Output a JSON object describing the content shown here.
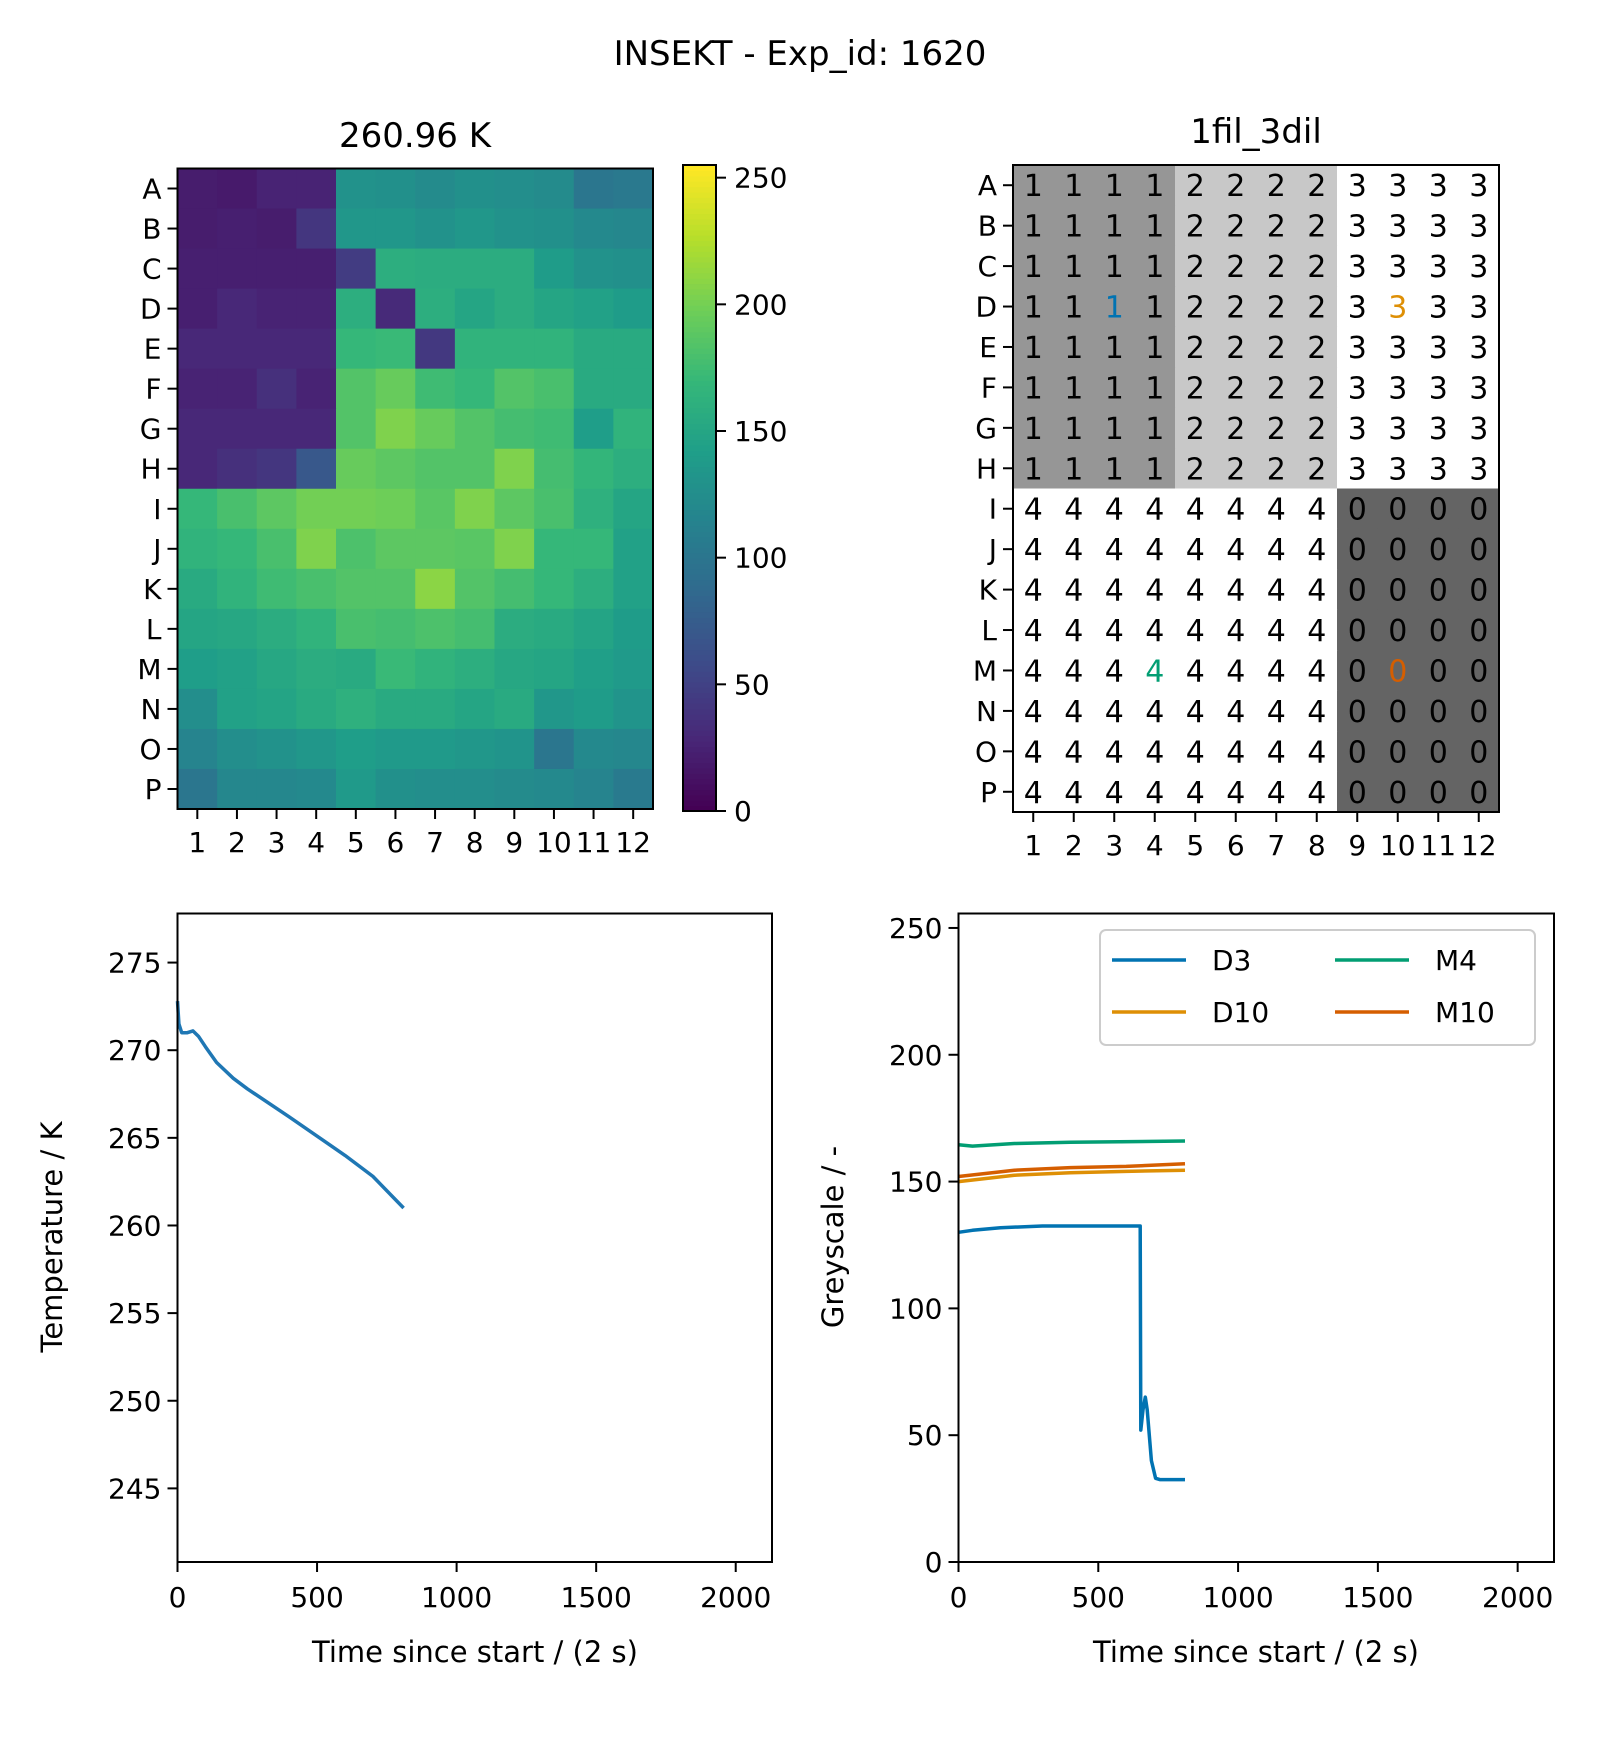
{
  "title": "INSEKT - Exp_id: 1620",
  "chart_data": [
    {
      "type": "heatmap",
      "title": "260.96 K",
      "row_labels": [
        "A",
        "B",
        "C",
        "D",
        "E",
        "F",
        "G",
        "H",
        "I",
        "J",
        "K",
        "L",
        "M",
        "N",
        "O",
        "P"
      ],
      "col_labels": [
        "1",
        "2",
        "3",
        "4",
        "5",
        "6",
        "7",
        "8",
        "9",
        "10",
        "11",
        "12"
      ],
      "colormap": "viridis",
      "vmin": 0,
      "vmax": 255,
      "colorbar_ticks": [
        "0",
        "50",
        "100",
        "150",
        "200",
        "250"
      ],
      "values": [
        [
          20,
          18,
          25,
          25,
          130,
          128,
          122,
          128,
          125,
          122,
          100,
          103
        ],
        [
          20,
          22,
          20,
          40,
          135,
          135,
          130,
          135,
          130,
          128,
          120,
          118
        ],
        [
          22,
          22,
          22,
          22,
          45,
          160,
          158,
          158,
          158,
          140,
          130,
          128
        ],
        [
          22,
          28,
          25,
          25,
          160,
          30,
          160,
          150,
          158,
          150,
          145,
          140
        ],
        [
          28,
          28,
          28,
          28,
          170,
          172,
          42,
          165,
          165,
          165,
          155,
          155
        ],
        [
          25,
          25,
          35,
          25,
          185,
          195,
          175,
          170,
          185,
          180,
          155,
          155
        ],
        [
          28,
          28,
          28,
          28,
          185,
          205,
          195,
          185,
          178,
          175,
          142,
          165
        ],
        [
          28,
          35,
          40,
          70,
          195,
          190,
          185,
          185,
          205,
          178,
          168,
          160
        ],
        [
          170,
          180,
          190,
          200,
          200,
          198,
          188,
          205,
          190,
          180,
          162,
          150
        ],
        [
          165,
          170,
          180,
          205,
          182,
          190,
          190,
          188,
          205,
          170,
          170,
          145
        ],
        [
          155,
          165,
          175,
          180,
          185,
          185,
          210,
          185,
          178,
          170,
          160,
          145
        ],
        [
          150,
          152,
          158,
          165,
          180,
          178,
          182,
          178,
          158,
          155,
          148,
          140
        ],
        [
          142,
          145,
          152,
          158,
          155,
          172,
          165,
          160,
          152,
          150,
          143,
          138
        ],
        [
          125,
          145,
          148,
          155,
          162,
          155,
          155,
          150,
          155,
          135,
          140,
          132
        ],
        [
          115,
          125,
          130,
          135,
          142,
          138,
          138,
          135,
          132,
          100,
          120,
          118
        ],
        [
          100,
          118,
          118,
          120,
          138,
          128,
          125,
          125,
          122,
          120,
          115,
          105
        ]
      ]
    },
    {
      "type": "table",
      "title": "1fil_3dil",
      "row_labels": [
        "A",
        "B",
        "C",
        "D",
        "E",
        "F",
        "G",
        "H",
        "I",
        "J",
        "K",
        "L",
        "M",
        "N",
        "O",
        "P"
      ],
      "col_labels": [
        "1",
        "2",
        "3",
        "4",
        "5",
        "6",
        "7",
        "8",
        "9",
        "10",
        "11",
        "12"
      ],
      "group_colors": {
        "0": "#646464",
        "1": "#969696",
        "2": "#c8c8c8",
        "3": "#ffffff",
        "4": "#ffffff"
      },
      "highlights": [
        {
          "well": "D3",
          "color": "#0173b2"
        },
        {
          "well": "D10",
          "color": "#de8f05"
        },
        {
          "well": "M4",
          "color": "#029e73"
        },
        {
          "well": "M10",
          "color": "#d55e00"
        }
      ],
      "values": [
        [
          "1",
          "1",
          "1",
          "1",
          "2",
          "2",
          "2",
          "2",
          "3",
          "3",
          "3",
          "3"
        ],
        [
          "1",
          "1",
          "1",
          "1",
          "2",
          "2",
          "2",
          "2",
          "3",
          "3",
          "3",
          "3"
        ],
        [
          "1",
          "1",
          "1",
          "1",
          "2",
          "2",
          "2",
          "2",
          "3",
          "3",
          "3",
          "3"
        ],
        [
          "1",
          "1",
          "1",
          "1",
          "2",
          "2",
          "2",
          "2",
          "3",
          "3",
          "3",
          "3"
        ],
        [
          "1",
          "1",
          "1",
          "1",
          "2",
          "2",
          "2",
          "2",
          "3",
          "3",
          "3",
          "3"
        ],
        [
          "1",
          "1",
          "1",
          "1",
          "2",
          "2",
          "2",
          "2",
          "3",
          "3",
          "3",
          "3"
        ],
        [
          "1",
          "1",
          "1",
          "1",
          "2",
          "2",
          "2",
          "2",
          "3",
          "3",
          "3",
          "3"
        ],
        [
          "1",
          "1",
          "1",
          "1",
          "2",
          "2",
          "2",
          "2",
          "3",
          "3",
          "3",
          "3"
        ],
        [
          "4",
          "4",
          "4",
          "4",
          "4",
          "4",
          "4",
          "4",
          "0",
          "0",
          "0",
          "0"
        ],
        [
          "4",
          "4",
          "4",
          "4",
          "4",
          "4",
          "4",
          "4",
          "0",
          "0",
          "0",
          "0"
        ],
        [
          "4",
          "4",
          "4",
          "4",
          "4",
          "4",
          "4",
          "4",
          "0",
          "0",
          "0",
          "0"
        ],
        [
          "4",
          "4",
          "4",
          "4",
          "4",
          "4",
          "4",
          "4",
          "0",
          "0",
          "0",
          "0"
        ],
        [
          "4",
          "4",
          "4",
          "4",
          "4",
          "4",
          "4",
          "4",
          "0",
          "0",
          "0",
          "0"
        ],
        [
          "4",
          "4",
          "4",
          "4",
          "4",
          "4",
          "4",
          "4",
          "0",
          "0",
          "0",
          "0"
        ],
        [
          "4",
          "4",
          "4",
          "4",
          "4",
          "4",
          "4",
          "4",
          "0",
          "0",
          "0",
          "0"
        ],
        [
          "4",
          "4",
          "4",
          "4",
          "4",
          "4",
          "4",
          "4",
          "0",
          "0",
          "0",
          "0"
        ]
      ]
    },
    {
      "type": "line",
      "xlabel": "Time since start / (2 s)",
      "ylabel": "Temperature / K",
      "xlim": [
        0,
        2130
      ],
      "ylim": [
        240.8,
        277.8
      ],
      "xticks": [
        0,
        500,
        1000,
        1500,
        2000
      ],
      "yticks": [
        245,
        250,
        255,
        260,
        265,
        270,
        275
      ],
      "series": [
        {
          "color": "#1f77b4",
          "x": [
            0,
            5,
            15,
            35,
            55,
            75,
            100,
            140,
            200,
            250,
            400,
            600,
            700,
            810
          ],
          "y": [
            272.8,
            271.5,
            271.0,
            271.0,
            271.1,
            270.8,
            270.2,
            269.3,
            268.4,
            267.8,
            266.2,
            264.0,
            262.8,
            261.0
          ]
        }
      ]
    },
    {
      "type": "line",
      "xlabel": "Time since start / (2 s)",
      "ylabel": "Greyscale / -",
      "xlim": [
        0,
        2130
      ],
      "ylim": [
        0,
        255.7
      ],
      "xticks": [
        0,
        500,
        1000,
        1500,
        2000
      ],
      "yticks": [
        0,
        50,
        100,
        150,
        200,
        250
      ],
      "legend": "top-right",
      "series": [
        {
          "name": "D3",
          "color": "#0173b2",
          "x": [
            0,
            50,
            150,
            300,
            650,
            652,
            660,
            668,
            675,
            690,
            705,
            720,
            810
          ],
          "y": [
            130,
            130.8,
            131.8,
            132.5,
            132.5,
            52,
            60,
            65,
            60,
            40,
            33,
            32.5,
            32.5
          ]
        },
        {
          "name": "D10",
          "color": "#de8f05",
          "x": [
            0,
            200,
            400,
            600,
            810
          ],
          "y": [
            150,
            152.5,
            153.5,
            154,
            154.5
          ]
        },
        {
          "name": "M4",
          "color": "#029e73",
          "x": [
            0,
            50,
            200,
            400,
            810
          ],
          "y": [
            164.5,
            164,
            165,
            165.5,
            166
          ]
        },
        {
          "name": "M10",
          "color": "#d55e00",
          "x": [
            0,
            200,
            400,
            600,
            810
          ],
          "y": [
            152,
            154.5,
            155.5,
            156,
            157
          ]
        }
      ]
    }
  ]
}
